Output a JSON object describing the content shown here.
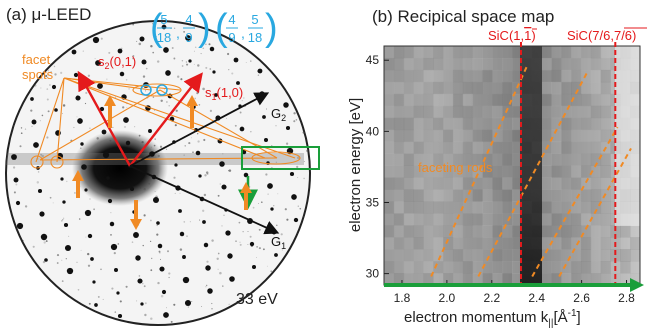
{
  "left_panel": {
    "title": "(a) μ-LEED",
    "energy": "33 eV",
    "facet_label_line1": "facet",
    "facet_label_line2": "spots",
    "s0_1": "s",
    "s0_1_sub": "2",
    "s0_1_idx": "(0,1)",
    "s1_0": "s",
    "s1_0_sub": "1",
    "s1_0_idx": "(1,0)",
    "g2": "G",
    "g2_sub": "2",
    "g1": "G",
    "g1_sub": "1",
    "frac1": {
      "a_num": "5",
      "a_den": "18",
      "b_num": "4",
      "b_den": "9"
    },
    "frac2": {
      "a_num": "4",
      "a_den": "9",
      "b_num": "5",
      "b_den": "18"
    },
    "colors": {
      "red": "#e41a1c",
      "orange": "#f08a24",
      "green": "#1a9e3a",
      "cyan": "#29a8e0",
      "black": "#111111"
    }
  },
  "right_panel": {
    "title": "(b) Recipical space map",
    "sic1_main": "SiC(1,",
    "sic1_bar": "1",
    "sic1_close": ")",
    "sic2_main": "SiC(7/6,",
    "sic2_bar": "7/6",
    "sic2_close": ")",
    "faceting": "faceting rods",
    "ylabel": "electron energy [eV]",
    "xlabel_main": "electron momentum k",
    "xlabel_sub": "||",
    "xlabel_unit": "[Å",
    "xlabel_exp": "-1",
    "xlabel_end": "]"
  },
  "chart_data": {
    "type": "heatmap",
    "title": "(b) Recipical space map",
    "xlabel": "electron momentum k||[Å-1]",
    "ylabel": "electron energy [eV]",
    "xlim": [
      1.72,
      2.86
    ],
    "ylim": [
      29.2,
      46
    ],
    "x_ticks": [
      1.8,
      2.0,
      2.2,
      2.4,
      2.6,
      2.8
    ],
    "x_tick_labels": [
      "1.8",
      "2.0",
      "2.2",
      "2.4",
      "2.6",
      "2.8"
    ],
    "y_ticks": [
      30,
      35,
      40,
      45
    ],
    "y_tick_labels": [
      "30",
      "35",
      "40",
      "45"
    ],
    "vertical_lines": [
      {
        "label": "SiC(1,1̄)",
        "x": 2.33
      },
      {
        "label": "SiC(7/6,7/6̄)",
        "x": 2.75
      }
    ],
    "faceting_rods": [
      {
        "x": [
          1.93,
          2.36
        ],
        "y": [
          29.8,
          44.7
        ]
      },
      {
        "x": [
          2.14,
          2.63
        ],
        "y": [
          29.8,
          44.3
        ]
      },
      {
        "x": [
          2.38,
          2.76
        ],
        "y": [
          29.8,
          40.3
        ]
      },
      {
        "x": [
          2.5,
          2.82
        ],
        "y": [
          29.8,
          38.8
        ]
      }
    ]
  }
}
